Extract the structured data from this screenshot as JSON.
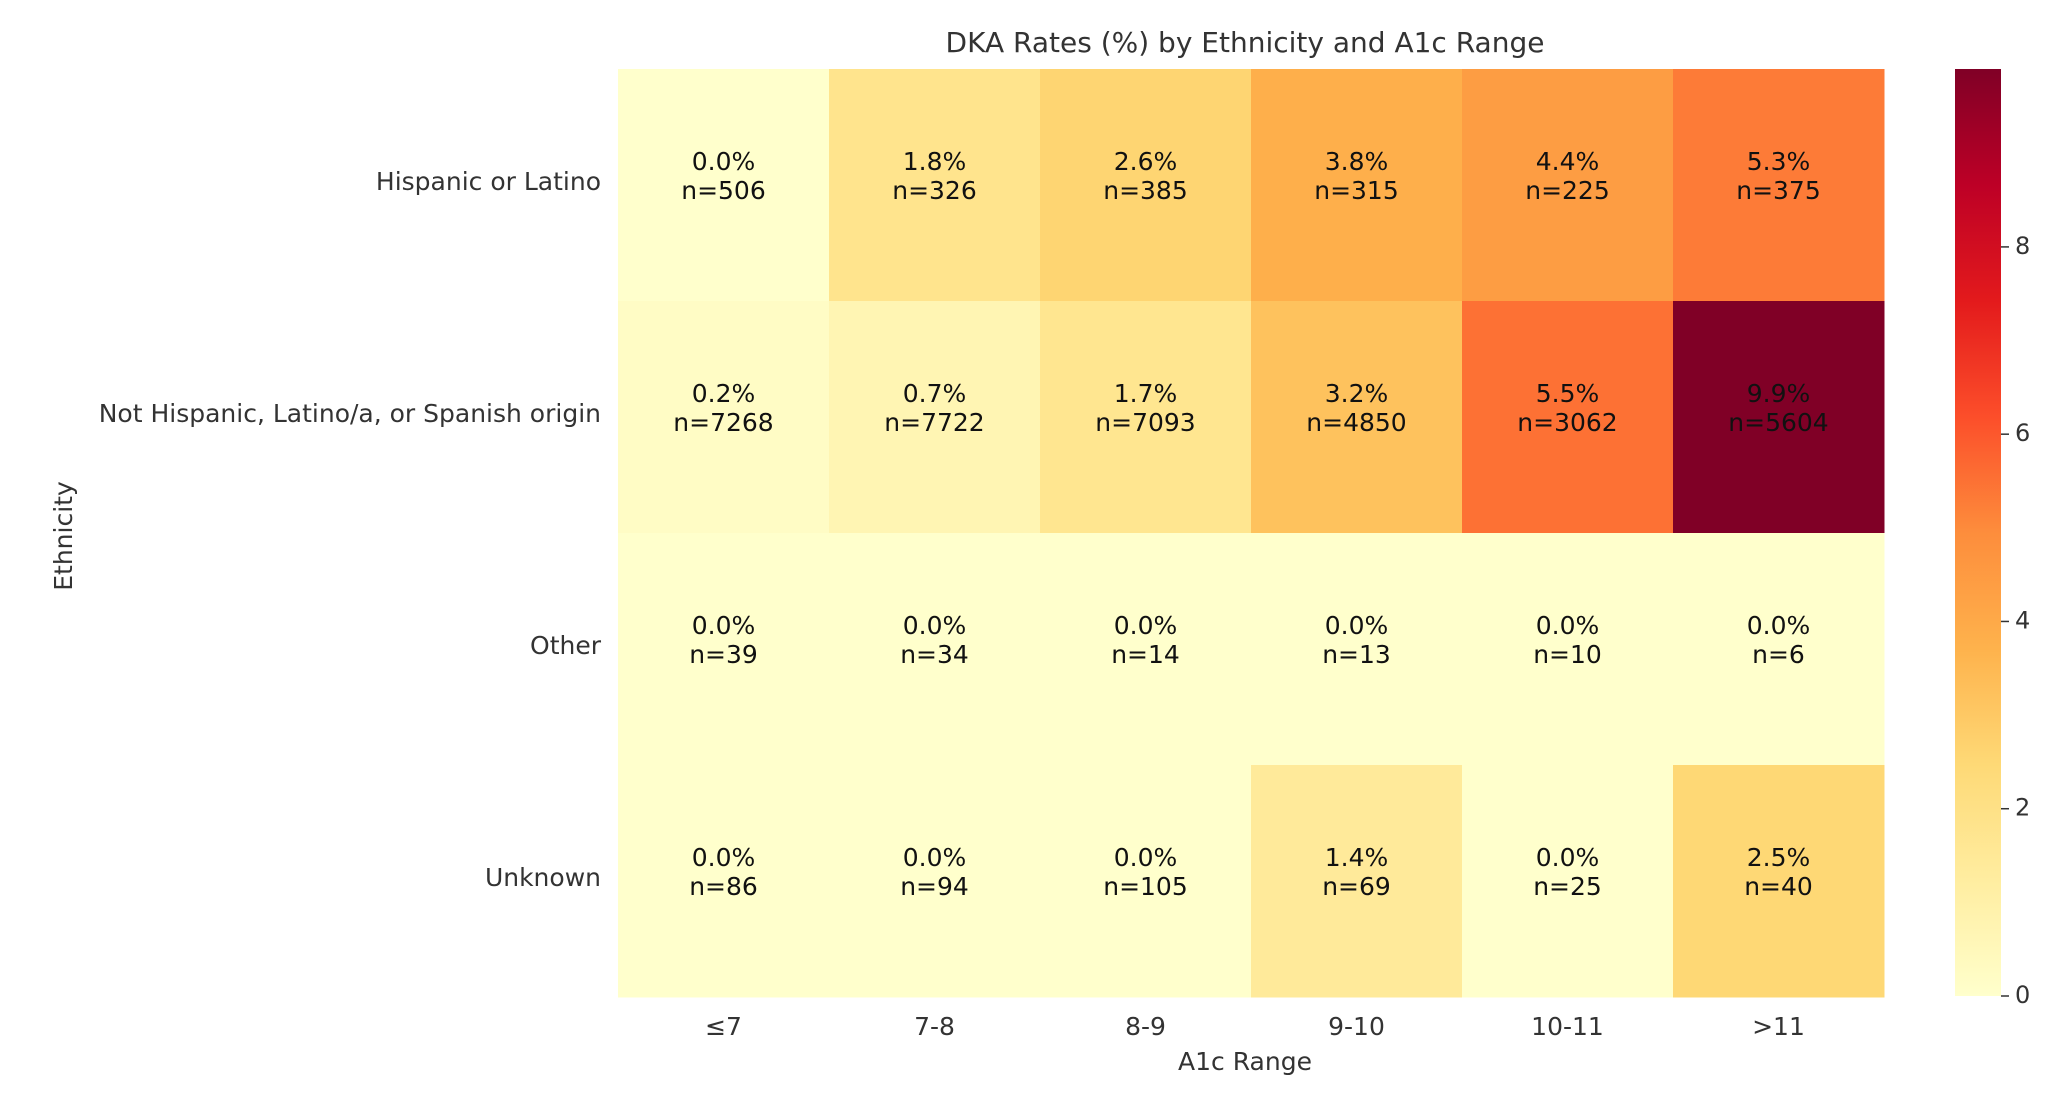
{
  "chart_data": {
    "type": "heatmap",
    "title": "DKA Rates (%) by Ethnicity and A1c Range",
    "xlabel": "A1c Range",
    "ylabel": "Ethnicity",
    "x_categories": [
      "≤7",
      "7-8",
      "8-9",
      "9-10",
      "10-11",
      ">11"
    ],
    "y_categories": [
      "Hispanic or Latino",
      "Not Hispanic, Latino/a, or Spanish origin",
      "Other",
      "Unknown"
    ],
    "values": [
      [
        0.0,
        1.8,
        2.6,
        3.8,
        4.4,
        5.3
      ],
      [
        0.2,
        0.7,
        1.7,
        3.2,
        5.5,
        9.9
      ],
      [
        0.0,
        0.0,
        0.0,
        0.0,
        0.0,
        0.0
      ],
      [
        0.0,
        0.0,
        0.0,
        1.4,
        0.0,
        2.5
      ]
    ],
    "annotations": [
      [
        "0.0%\nn=506",
        "1.8%\nn=326",
        "2.6%\nn=385",
        "3.8%\nn=315",
        "4.4%\nn=225",
        "5.3%\nn=375"
      ],
      [
        "0.2%\nn=7268",
        "0.7%\nn=7722",
        "1.7%\nn=7093",
        "3.2%\nn=4850",
        "5.5%\nn=3062",
        "9.9%\nn=5604"
      ],
      [
        "0.0%\nn=39",
        "0.0%\nn=34",
        "0.0%\nn=14",
        "0.0%\nn=13",
        "0.0%\nn=10",
        "0.0%\nn=6"
      ],
      [
        "0.0%\nn=86",
        "0.0%\nn=94",
        "0.0%\nn=105",
        "1.4%\nn=69",
        "0.0%\nn=25",
        "2.5%\nn=40"
      ]
    ],
    "colorscale": "YlOrRd",
    "value_range": [
      0,
      9.9
    ],
    "colorbar_ticks": [
      "0",
      "2",
      "4",
      "6",
      "8"
    ],
    "grid": false
  }
}
